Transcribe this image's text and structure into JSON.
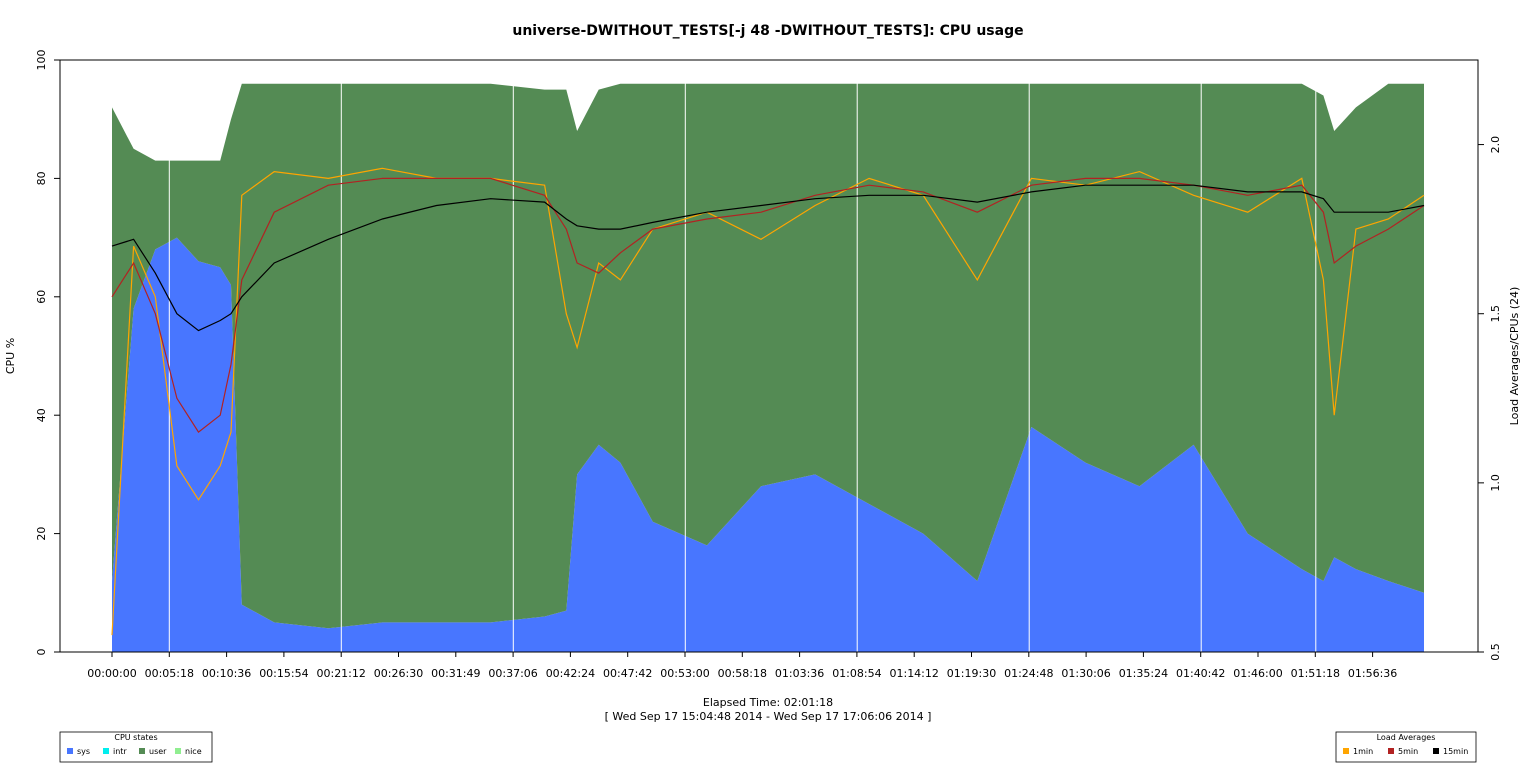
{
  "chart_data": {
    "type": "area",
    "title": "universe-DWITHOUT_TESTS[-j 48  -DWITHOUT_TESTS]: CPU usage",
    "xlabel": "Elapsed Time: 02:01:18",
    "xlabel_sub": "[ Wed Sep 17 15:04:48 2014 - Wed Sep 17 17:06:06 2014 ]",
    "ylabel": "CPU %",
    "y2label": "Load Averages/CPUs (24)",
    "ylim": [
      0,
      100
    ],
    "y2lim": [
      0.5,
      2.25
    ],
    "y_ticks": [
      "0",
      "20",
      "40",
      "60",
      "80",
      "100"
    ],
    "y2_ticks": [
      "0.5",
      "1.0",
      "1.5",
      "2.0"
    ],
    "x_ticks": [
      "00:00:00",
      "00:05:18",
      "00:10:36",
      "00:15:54",
      "00:21:12",
      "00:26:30",
      "00:31:49",
      "00:37:06",
      "00:42:24",
      "00:47:42",
      "00:53:00",
      "00:58:18",
      "01:03:36",
      "01:08:54",
      "01:14:12",
      "01:19:30",
      "01:24:48",
      "01:30:06",
      "01:35:24",
      "01:40:42",
      "01:46:00",
      "01:51:18",
      "01:56:36"
    ],
    "x_minutes": [
      0,
      2,
      4,
      6,
      8,
      10,
      11,
      12,
      15,
      20,
      25,
      30,
      35,
      40,
      42,
      43,
      45,
      47,
      50,
      55,
      60,
      65,
      70,
      75,
      80,
      85,
      90,
      95,
      100,
      105,
      110,
      112,
      113,
      115,
      118,
      121.3
    ],
    "stacked_series": [
      {
        "name": "sys",
        "color": "#4876ff",
        "values": [
          12,
          58,
          68,
          70,
          66,
          65,
          62,
          8,
          5,
          4,
          5,
          5,
          5,
          6,
          7,
          30,
          35,
          32,
          22,
          18,
          28,
          30,
          25,
          20,
          12,
          38,
          32,
          28,
          35,
          20,
          14,
          12,
          16,
          14,
          12,
          10
        ]
      },
      {
        "name": "intr",
        "color": "#00eeee",
        "values": [
          0,
          0,
          0,
          0,
          0,
          0,
          0,
          0,
          0,
          0,
          0,
          0,
          0,
          0,
          0,
          0,
          0,
          0,
          0,
          0,
          0,
          0,
          0,
          0,
          0,
          0,
          0,
          0,
          0,
          0,
          0,
          0,
          0,
          0,
          0,
          0
        ]
      },
      {
        "name": "user",
        "color": "#548b54",
        "values": [
          80,
          27,
          15,
          13,
          17,
          18,
          28,
          88,
          91,
          92,
          91,
          91,
          91,
          89,
          88,
          58,
          60,
          64,
          74,
          78,
          68,
          66,
          71,
          76,
          84,
          58,
          64,
          68,
          61,
          76,
          82,
          82,
          72,
          78,
          84,
          86
        ]
      },
      {
        "name": "nice",
        "color": "#90ee90",
        "values": [
          0,
          0,
          0,
          0,
          0,
          0,
          0,
          0,
          0,
          0,
          0,
          0,
          0,
          0,
          0,
          0,
          0,
          0,
          0,
          0,
          0,
          0,
          0,
          0,
          0,
          0,
          0,
          0,
          0,
          0,
          0,
          0,
          0,
          0,
          0,
          0
        ]
      }
    ],
    "load_series": [
      {
        "name": "1min",
        "color": "#ffa500",
        "values": [
          0.55,
          1.7,
          1.55,
          1.05,
          0.95,
          1.05,
          1.15,
          1.85,
          1.92,
          1.9,
          1.93,
          1.9,
          1.9,
          1.88,
          1.5,
          1.4,
          1.65,
          1.6,
          1.75,
          1.8,
          1.72,
          1.82,
          1.9,
          1.85,
          1.6,
          1.9,
          1.88,
          1.92,
          1.85,
          1.8,
          1.9,
          1.6,
          1.2,
          1.75,
          1.78,
          1.85
        ]
      },
      {
        "name": "5min",
        "color": "#b22222",
        "values": [
          1.55,
          1.65,
          1.5,
          1.25,
          1.15,
          1.2,
          1.35,
          1.6,
          1.8,
          1.88,
          1.9,
          1.9,
          1.9,
          1.85,
          1.75,
          1.65,
          1.62,
          1.68,
          1.75,
          1.78,
          1.8,
          1.85,
          1.88,
          1.86,
          1.8,
          1.88,
          1.9,
          1.9,
          1.88,
          1.85,
          1.88,
          1.8,
          1.65,
          1.7,
          1.75,
          1.82
        ]
      },
      {
        "name": "15min",
        "color": "#000000",
        "values": [
          1.7,
          1.72,
          1.62,
          1.5,
          1.45,
          1.48,
          1.5,
          1.55,
          1.65,
          1.72,
          1.78,
          1.82,
          1.84,
          1.83,
          1.78,
          1.76,
          1.75,
          1.75,
          1.77,
          1.8,
          1.82,
          1.84,
          1.85,
          1.85,
          1.83,
          1.86,
          1.88,
          1.88,
          1.88,
          1.86,
          1.86,
          1.84,
          1.8,
          1.8,
          1.8,
          1.82
        ]
      }
    ],
    "marker_minutes": [
      5.3,
      21.2,
      37.1,
      53.0,
      68.9,
      84.8,
      100.7,
      111.3
    ],
    "grid": false,
    "legend_left": {
      "title": "CPU states",
      "placement": "bottom-left"
    },
    "legend_right": {
      "title": "Load Averages",
      "placement": "bottom-right"
    }
  }
}
